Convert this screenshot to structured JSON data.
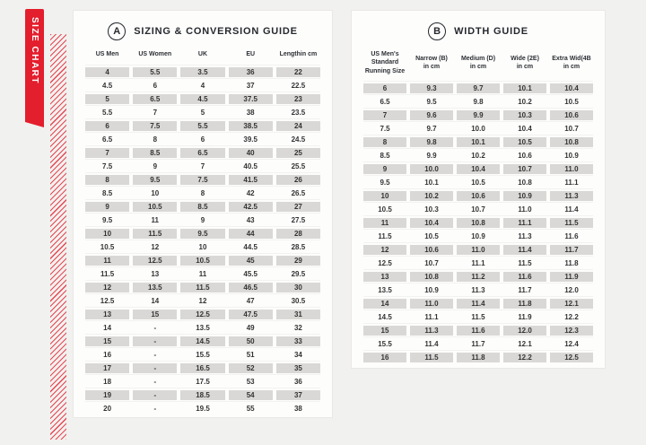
{
  "page": {
    "background": "#f1f1ef",
    "accent_red": "#e31e2d",
    "shaded_cell": "#d9d8d6"
  },
  "side_tab": {
    "label": "SIZE CHART"
  },
  "sizing_guide": {
    "badge": "A",
    "title": "SIZING & CONVERSION GUIDE",
    "columns": [
      "US Men",
      "US Women",
      "UK",
      "EU",
      "Lengthin cm"
    ],
    "rows": [
      [
        "4",
        "5.5",
        "3.5",
        "36",
        "22"
      ],
      [
        "4.5",
        "6",
        "4",
        "37",
        "22.5"
      ],
      [
        "5",
        "6.5",
        "4.5",
        "37.5",
        "23"
      ],
      [
        "5.5",
        "7",
        "5",
        "38",
        "23.5"
      ],
      [
        "6",
        "7.5",
        "5.5",
        "38.5",
        "24"
      ],
      [
        "6.5",
        "8",
        "6",
        "39.5",
        "24.5"
      ],
      [
        "7",
        "8.5",
        "6.5",
        "40",
        "25"
      ],
      [
        "7.5",
        "9",
        "7",
        "40.5",
        "25.5"
      ],
      [
        "8",
        "9.5",
        "7.5",
        "41.5",
        "26"
      ],
      [
        "8.5",
        "10",
        "8",
        "42",
        "26.5"
      ],
      [
        "9",
        "10.5",
        "8.5",
        "42.5",
        "27"
      ],
      [
        "9.5",
        "11",
        "9",
        "43",
        "27.5"
      ],
      [
        "10",
        "11.5",
        "9.5",
        "44",
        "28"
      ],
      [
        "10.5",
        "12",
        "10",
        "44.5",
        "28.5"
      ],
      [
        "11",
        "12.5",
        "10.5",
        "45",
        "29"
      ],
      [
        "11.5",
        "13",
        "11",
        "45.5",
        "29.5"
      ],
      [
        "12",
        "13.5",
        "11.5",
        "46.5",
        "30"
      ],
      [
        "12.5",
        "14",
        "12",
        "47",
        "30.5"
      ],
      [
        "13",
        "15",
        "12.5",
        "47.5",
        "31"
      ],
      [
        "14",
        "-",
        "13.5",
        "49",
        "32"
      ],
      [
        "15",
        "-",
        "14.5",
        "50",
        "33"
      ],
      [
        "16",
        "-",
        "15.5",
        "51",
        "34"
      ],
      [
        "17",
        "-",
        "16.5",
        "52",
        "35"
      ],
      [
        "18",
        "-",
        "17.5",
        "53",
        "36"
      ],
      [
        "19",
        "-",
        "18.5",
        "54",
        "37"
      ],
      [
        "20",
        "-",
        "19.5",
        "55",
        "38"
      ]
    ]
  },
  "width_guide": {
    "badge": "B",
    "title": "WIDTH GUIDE",
    "columns": [
      "US Men's\nStandard\nRunning Size",
      "Narrow (B)\nin cm",
      "Medium (D)\nin cm",
      "Wide (2E)\nin cm",
      "Extra Wid(4B\nin cm"
    ],
    "rows": [
      [
        "6",
        "9.3",
        "9.7",
        "10.1",
        "10.4"
      ],
      [
        "6.5",
        "9.5",
        "9.8",
        "10.2",
        "10.5"
      ],
      [
        "7",
        "9.6",
        "9.9",
        "10.3",
        "10.6"
      ],
      [
        "7.5",
        "9.7",
        "10.0",
        "10.4",
        "10.7"
      ],
      [
        "8",
        "9.8",
        "10.1",
        "10.5",
        "10.8"
      ],
      [
        "8.5",
        "9.9",
        "10.2",
        "10.6",
        "10.9"
      ],
      [
        "9",
        "10.0",
        "10.4",
        "10.7",
        "11.0"
      ],
      [
        "9.5",
        "10.1",
        "10.5",
        "10.8",
        "11.1"
      ],
      [
        "10",
        "10.2",
        "10.6",
        "10.9",
        "11.3"
      ],
      [
        "10.5",
        "10.3",
        "10.7",
        "11.0",
        "11.4"
      ],
      [
        "11",
        "10.4",
        "10.8",
        "11.1",
        "11.5"
      ],
      [
        "11.5",
        "10.5",
        "10.9",
        "11.3",
        "11.6"
      ],
      [
        "12",
        "10.6",
        "11.0",
        "11.4",
        "11.7"
      ],
      [
        "12.5",
        "10.7",
        "11.1",
        "11.5",
        "11.8"
      ],
      [
        "13",
        "10.8",
        "11.2",
        "11.6",
        "11.9"
      ],
      [
        "13.5",
        "10.9",
        "11.3",
        "11.7",
        "12.0"
      ],
      [
        "14",
        "11.0",
        "11.4",
        "11.8",
        "12.1"
      ],
      [
        "14.5",
        "11.1",
        "11.5",
        "11.9",
        "12.2"
      ],
      [
        "15",
        "11.3",
        "11.6",
        "12.0",
        "12.3"
      ],
      [
        "15.5",
        "11.4",
        "11.7",
        "12.1",
        "12.4"
      ],
      [
        "16",
        "11.5",
        "11.8",
        "12.2",
        "12.5"
      ]
    ]
  }
}
